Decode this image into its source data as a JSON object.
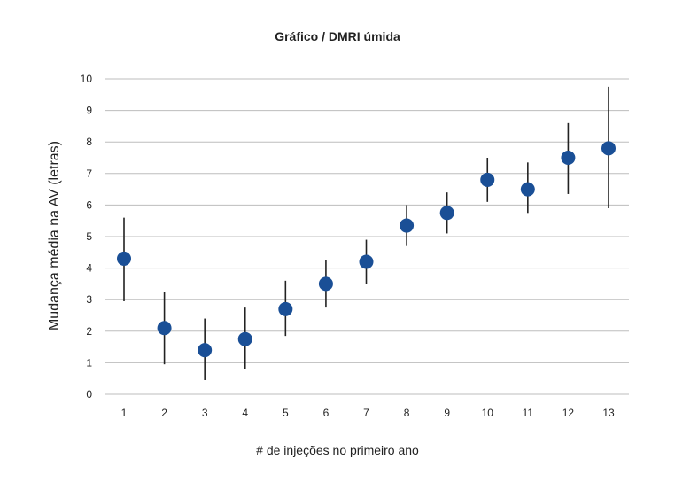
{
  "chart_data": {
    "type": "scatter",
    "title": "Gráfico / DMRI úmida",
    "xlabel": "# de injeções no primeiro ano",
    "ylabel": "Mudança média na AV (letras)",
    "x": [
      "1",
      "2",
      "3",
      "4",
      "5",
      "6",
      "7",
      "8",
      "9",
      "10",
      "11",
      "12",
      "13"
    ],
    "series": [
      {
        "values": [
          4.3,
          2.1,
          1.4,
          1.75,
          2.7,
          3.5,
          4.2,
          5.35,
          5.75,
          6.8,
          6.5,
          7.5,
          7.8
        ],
        "error_low": [
          2.95,
          0.95,
          0.45,
          0.8,
          1.85,
          2.75,
          3.5,
          4.7,
          5.1,
          6.1,
          5.75,
          6.35,
          5.9
        ],
        "error_high": [
          5.6,
          3.25,
          2.4,
          2.75,
          3.6,
          4.25,
          4.9,
          6.0,
          6.4,
          7.5,
          7.35,
          8.6,
          9.75
        ]
      }
    ],
    "ylim": [
      0,
      10
    ],
    "yticks": [
      "0",
      "1",
      "2",
      "3",
      "4",
      "5",
      "6",
      "7",
      "8",
      "9",
      "10"
    ],
    "grid": true,
    "colors": {
      "marker": "#1a4f96",
      "errorbar": "#222222",
      "grid": "#bdbdbd"
    }
  }
}
